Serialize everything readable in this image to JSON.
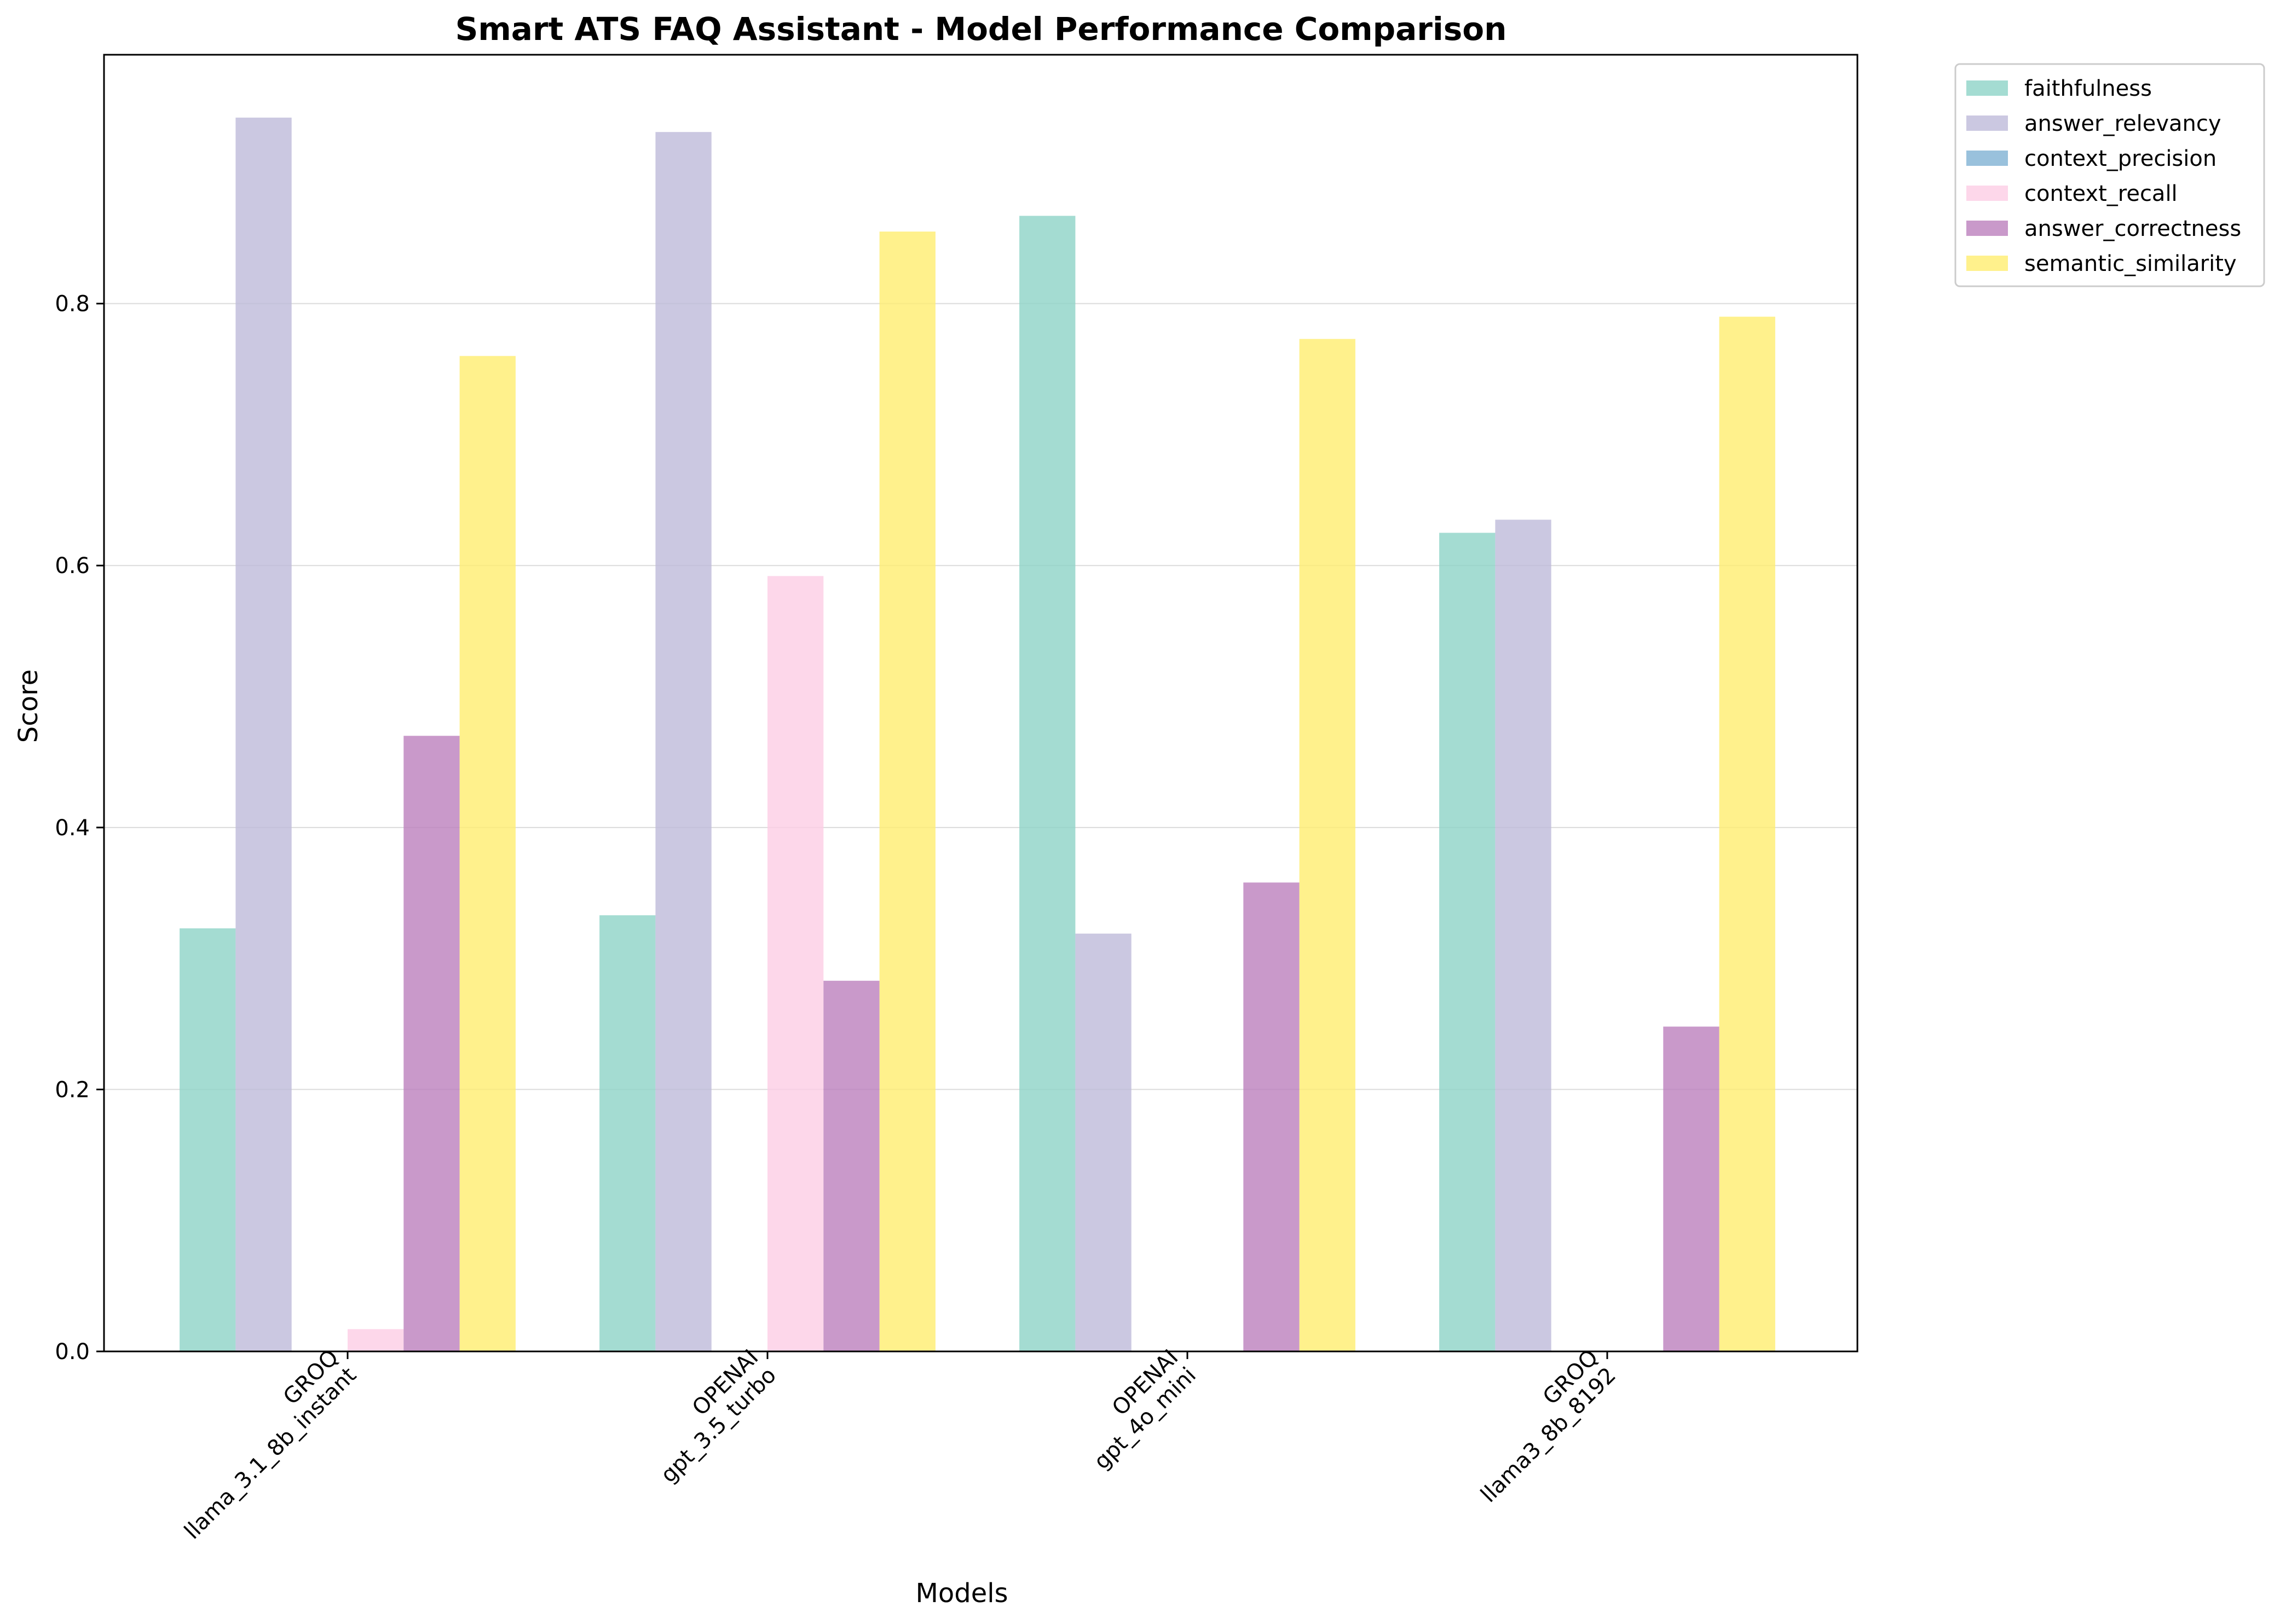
{
  "chart_data": {
    "type": "bar",
    "title": "Smart ATS FAQ Assistant - Model Performance Comparison",
    "xlabel": "Models",
    "ylabel": "Score",
    "ylim": [
      0,
      0.99
    ],
    "yticks": [
      "0.0",
      "0.2",
      "0.4",
      "0.6",
      "0.8"
    ],
    "grid": "horizontal",
    "legend_position": "outside-top-right",
    "categories": [
      [
        "GROQ",
        "llama_3.1_8b_instant"
      ],
      [
        "OPENAI",
        "gpt_3.5_turbo"
      ],
      [
        "OPENAI",
        "gpt_4o_mini"
      ],
      [
        "GROQ",
        "llama3_8b_8192"
      ]
    ],
    "series": [
      {
        "name": "faithfulness",
        "color": "#8dd3c7",
        "values": [
          0.323,
          0.333,
          0.867,
          0.625
        ]
      },
      {
        "name": "answer_relevancy",
        "color": "#bebada",
        "values": [
          0.942,
          0.931,
          0.319,
          0.635
        ]
      },
      {
        "name": "context_precision",
        "color": "#80b1d3",
        "values": [
          0.0,
          0.0,
          0.0,
          0.0
        ]
      },
      {
        "name": "context_recall",
        "color": "#fccde5",
        "values": [
          0.017,
          0.592,
          0.0,
          0.0
        ]
      },
      {
        "name": "answer_correctness",
        "color": "#bc80bd",
        "values": [
          0.47,
          0.283,
          0.358,
          0.248
        ]
      },
      {
        "name": "semantic_similarity",
        "color": "#ffed6f",
        "values": [
          0.76,
          0.855,
          0.773,
          0.79
        ]
      }
    ]
  }
}
